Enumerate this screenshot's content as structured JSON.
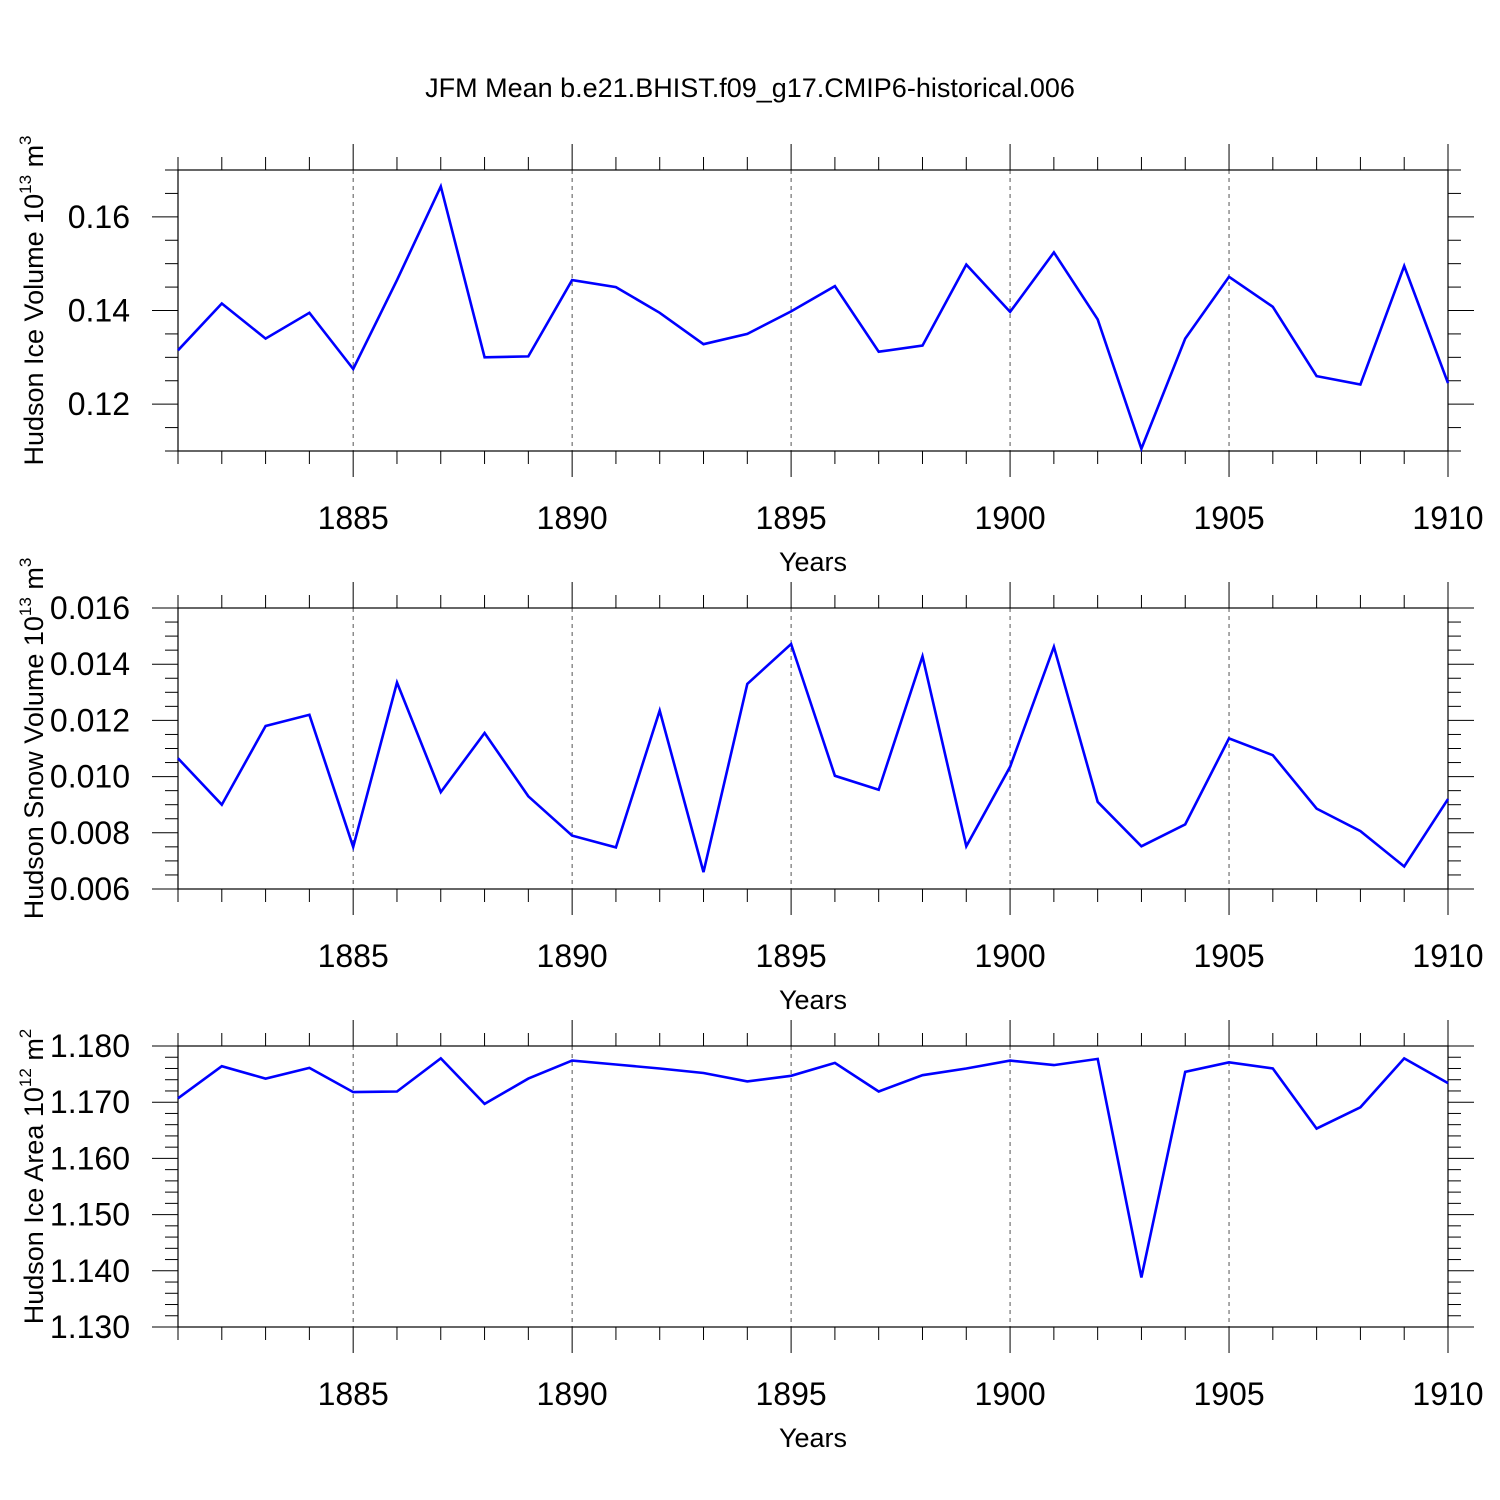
{
  "title": "JFM Mean b.e21.BHIST.f09_g17.CMIP6-historical.006",
  "line_color": "#0000ff",
  "chart_data": [
    {
      "type": "line",
      "title": "",
      "xlabel": "Years",
      "ylabel": "Hudson Ice Volume 10",
      "ylabel_exp": "13",
      "ylabel_unit": " m",
      "ylabel_unit_exp": "3",
      "xlim": [
        1881,
        1910
      ],
      "ylim": [
        0.11,
        0.17
      ],
      "yticks": [
        0.12,
        0.14,
        0.16
      ],
      "ytick_labels": [
        "0.12",
        "0.14",
        "0.16"
      ],
      "y_minor_step": 0.005,
      "xticks": [
        1885,
        1890,
        1895,
        1900,
        1905,
        1910
      ],
      "xtick_labels": [
        "1885",
        "1890",
        "1895",
        "1900",
        "1905",
        "1910"
      ],
      "grid": "vertical dashed at major x ticks",
      "series": [
        {
          "x": [
            1881,
            1882,
            1883,
            1884,
            1885,
            1886,
            1887,
            1888,
            1889,
            1890,
            1891,
            1892,
            1893,
            1894,
            1895,
            1896,
            1897,
            1898,
            1899,
            1900,
            1901,
            1902,
            1903,
            1904,
            1905,
            1906,
            1907,
            1908,
            1909,
            1910
          ],
          "values": [
            0.1315,
            0.1415,
            0.134,
            0.1395,
            0.1275,
            0.1465,
            0.1665,
            0.13,
            0.1302,
            0.1465,
            0.145,
            0.1395,
            0.1328,
            0.135,
            0.1398,
            0.1452,
            0.1312,
            0.1325,
            0.1498,
            0.1397,
            0.1524,
            0.1381,
            0.1105,
            0.134,
            0.1472,
            0.1408,
            0.126,
            0.1242,
            0.1495,
            0.1245
          ]
        }
      ]
    },
    {
      "type": "line",
      "title": "",
      "xlabel": "Years",
      "ylabel": "Hudson Snow Volume 10",
      "ylabel_exp": "13",
      "ylabel_unit": " m",
      "ylabel_unit_exp": "3",
      "xlim": [
        1881,
        1910
      ],
      "ylim": [
        0.006,
        0.016
      ],
      "yticks": [
        0.006,
        0.008,
        0.01,
        0.012,
        0.014,
        0.016
      ],
      "ytick_labels": [
        "0.006",
        "0.008",
        "0.010",
        "0.012",
        "0.014",
        "0.016"
      ],
      "y_minor_step": 0.0005,
      "xticks": [
        1885,
        1890,
        1895,
        1900,
        1905,
        1910
      ],
      "xtick_labels": [
        "1885",
        "1890",
        "1895",
        "1900",
        "1905",
        "1910"
      ],
      "grid": "vertical dashed at major x ticks",
      "series": [
        {
          "x": [
            1881,
            1882,
            1883,
            1884,
            1885,
            1886,
            1887,
            1888,
            1889,
            1890,
            1891,
            1892,
            1893,
            1894,
            1895,
            1896,
            1897,
            1898,
            1899,
            1900,
            1901,
            1902,
            1903,
            1904,
            1905,
            1906,
            1907,
            1908,
            1909,
            1910
          ],
          "values": [
            0.01065,
            0.009,
            0.0118,
            0.0122,
            0.0075,
            0.01335,
            0.00945,
            0.01155,
            0.0093,
            0.0079,
            0.00748,
            0.01235,
            0.0066,
            0.0133,
            0.01472,
            0.01003,
            0.00953,
            0.01428,
            0.00752,
            0.01035,
            0.01462,
            0.0091,
            0.00752,
            0.0083,
            0.01136,
            0.01076,
            0.00886,
            0.00806,
            0.0068,
            0.0092
          ]
        }
      ]
    },
    {
      "type": "line",
      "title": "",
      "xlabel": "Years",
      "ylabel": "Hudson Ice Area 10",
      "ylabel_exp": "12",
      "ylabel_unit": " m",
      "ylabel_unit_exp": "2",
      "xlim": [
        1881,
        1910
      ],
      "ylim": [
        1.13,
        1.18
      ],
      "yticks": [
        1.13,
        1.14,
        1.15,
        1.16,
        1.17,
        1.18
      ],
      "ytick_labels": [
        "1.130",
        "1.140",
        "1.150",
        "1.160",
        "1.170",
        "1.180"
      ],
      "y_minor_step": 0.002,
      "xticks": [
        1885,
        1890,
        1895,
        1900,
        1905,
        1910
      ],
      "xtick_labels": [
        "1885",
        "1890",
        "1895",
        "1900",
        "1905",
        "1910"
      ],
      "grid": "vertical dashed at major x ticks",
      "series": [
        {
          "x": [
            1881,
            1882,
            1883,
            1884,
            1885,
            1886,
            1887,
            1888,
            1889,
            1890,
            1891,
            1892,
            1893,
            1894,
            1895,
            1896,
            1897,
            1898,
            1899,
            1900,
            1901,
            1902,
            1903,
            1904,
            1905,
            1906,
            1907,
            1908,
            1909,
            1910
          ],
          "values": [
            1.1707,
            1.1764,
            1.1742,
            1.1761,
            1.1718,
            1.1719,
            1.1778,
            1.1697,
            1.1742,
            1.1774,
            1.1767,
            1.176,
            1.1752,
            1.1737,
            1.1747,
            1.177,
            1.1719,
            1.1748,
            1.176,
            1.1774,
            1.1766,
            1.1777,
            1.1388,
            1.1754,
            1.1771,
            1.176,
            1.1653,
            1.1691,
            1.1778,
            1.1734
          ]
        }
      ]
    }
  ]
}
